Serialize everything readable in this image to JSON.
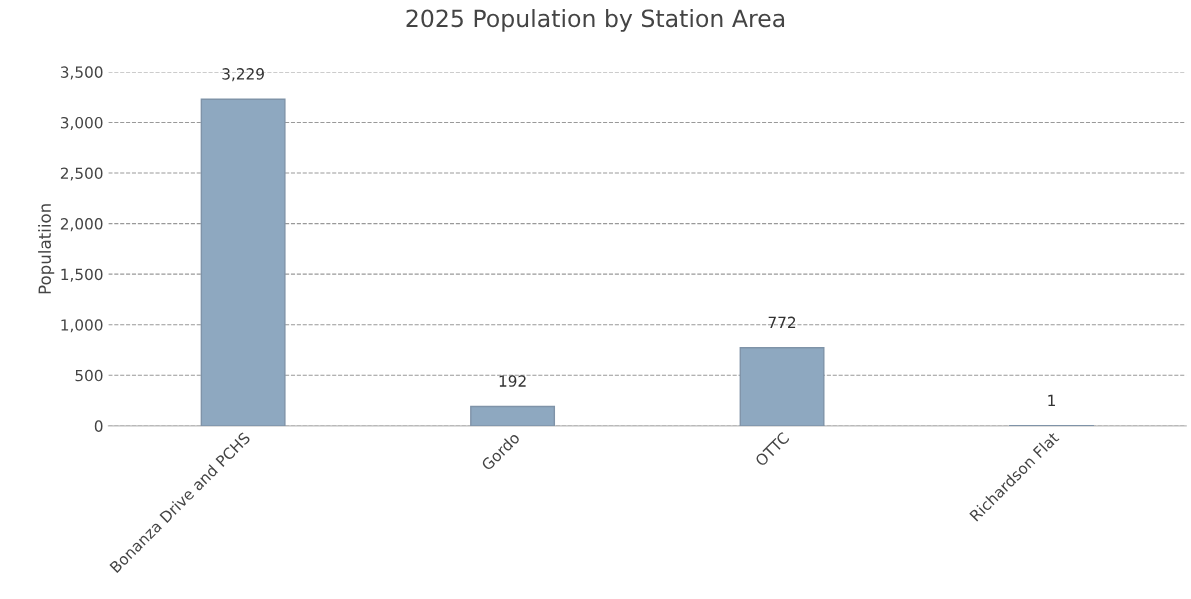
{
  "chart_data": {
    "type": "bar",
    "title": "2025 Population by Station Area",
    "ylabel": "Populatiion",
    "categories": [
      "Bonanza Drive and PCHS",
      "Gordo",
      "OTTC",
      "Richardson Flat"
    ],
    "values": [
      3229,
      192,
      772,
      1
    ],
    "color": "#8ea8c0",
    "value_labels": [
      "3,229",
      "192",
      "772",
      "1"
    ],
    "ylim": [
      0,
      3500
    ],
    "yticks": [
      {
        "value": 0,
        "label": "0"
      },
      {
        "value": 500,
        "label": "500"
      },
      {
        "value": 1000,
        "label": "1,000"
      },
      {
        "value": 1500,
        "label": "1,500"
      },
      {
        "value": 2000,
        "label": "2,000"
      },
      {
        "value": 2500,
        "label": "2,500"
      },
      {
        "value": 3000,
        "label": "3,000"
      },
      {
        "value": 3500,
        "label": "3,500"
      }
    ],
    "grid": "y",
    "line_style": "dashed"
  }
}
